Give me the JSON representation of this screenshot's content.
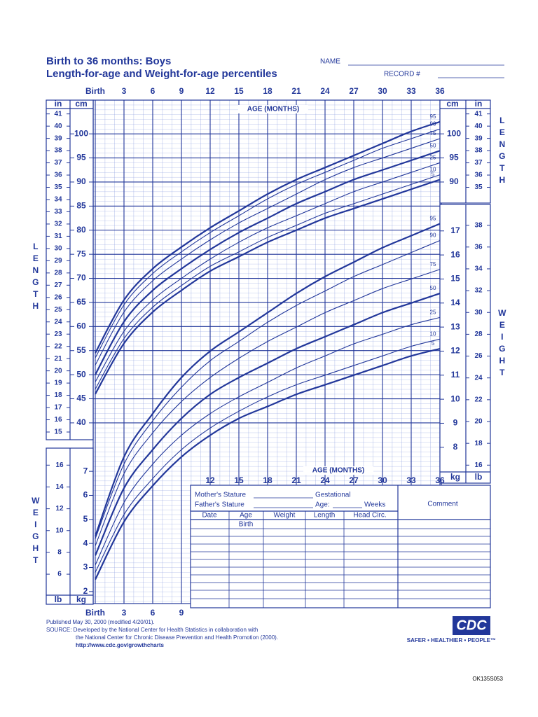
{
  "header": {
    "title": "Birth to 36 months: Boys",
    "subtitle": "Length-for-age and Weight-for-age percentiles",
    "name_label": "NAME",
    "record_label": "RECORD #"
  },
  "chart_data": [
    {
      "type": "line",
      "title": "Length-for-age",
      "x_label": "AGE (MONTHS)",
      "y_label": "LENGTH",
      "cm_label": "cm",
      "in_label": "in",
      "x": [
        0,
        3,
        6,
        9,
        12,
        15,
        18,
        21,
        24,
        27,
        30,
        33,
        36
      ],
      "xlim": [
        0,
        36
      ],
      "xticks": [
        {
          "value": 0,
          "label": "Birth"
        },
        3,
        6,
        9,
        12,
        15,
        18,
        21,
        24,
        27,
        30,
        33,
        36
      ],
      "ylim": [
        36.5,
        107
      ],
      "yticks": [
        40,
        45,
        50,
        55,
        60,
        65,
        70,
        75,
        80,
        85,
        90,
        95,
        100
      ],
      "yticks_right": [
        90,
        95,
        100
      ],
      "in_ticks": [
        15,
        16,
        17,
        18,
        19,
        20,
        21,
        22,
        23,
        24,
        25,
        26,
        27,
        28,
        29,
        30,
        31,
        32,
        33,
        34,
        35,
        36,
        37,
        38,
        39,
        40,
        41
      ],
      "in_ticks_right": [
        35,
        36,
        37,
        38,
        39,
        40,
        41
      ],
      "grid": true,
      "series": [
        {
          "name": "5",
          "color": "#22379a",
          "values": [
            46,
            56.5,
            63,
            67.5,
            71.5,
            74.5,
            77.5,
            80,
            82.5,
            84.5,
            86.5,
            88.5,
            90.5
          ]
        },
        {
          "name": "10",
          "color": "#22379a",
          "values": [
            47,
            57.5,
            64,
            68.5,
            72.5,
            75.5,
            78.5,
            81,
            83.5,
            85.5,
            87.5,
            89.5,
            91.5
          ]
        },
        {
          "name": "25",
          "color": "#22379a",
          "values": [
            48.5,
            59,
            65.5,
            70,
            74,
            77.5,
            80.5,
            83,
            85.5,
            88,
            90,
            92,
            94
          ]
        },
        {
          "name": "50",
          "color": "#22379a",
          "values": [
            50,
            61,
            67.5,
            72,
            76,
            79.5,
            82.5,
            85.5,
            88,
            90.5,
            92.5,
            94.5,
            96.5
          ]
        },
        {
          "name": "75",
          "color": "#22379a",
          "values": [
            52,
            63,
            69.5,
            74,
            78,
            81.5,
            84.5,
            87.5,
            90.5,
            93,
            95,
            97,
            99
          ]
        },
        {
          "name": "90",
          "color": "#22379a",
          "values": [
            53.5,
            64.5,
            71,
            75.5,
            79.5,
            83,
            86.5,
            89.5,
            92,
            94.5,
            97,
            99,
            101
          ]
        },
        {
          "name": "95",
          "color": "#22379a",
          "values": [
            54.5,
            65.5,
            72,
            76.5,
            80.5,
            84,
            87.5,
            90.5,
            93,
            95.5,
            98,
            100.5,
            102.5
          ]
        }
      ]
    },
    {
      "type": "line",
      "title": "Weight-for-age",
      "x_label": "AGE (MONTHS)",
      "y_label": "WEIGHT",
      "kg_label": "kg",
      "lb_label": "lb",
      "x": [
        0,
        3,
        6,
        9,
        12,
        15,
        18,
        21,
        24,
        27,
        30,
        33,
        36
      ],
      "xlim": [
        0,
        36
      ],
      "xticks_mid": [
        12,
        15,
        18,
        21,
        24,
        27,
        30,
        33,
        36
      ],
      "xticks_bottom": [
        {
          "value": 0,
          "label": "Birth"
        },
        3,
        6,
        9
      ],
      "ylim": [
        1.5,
        18.1
      ],
      "yticks": [
        2,
        3,
        4,
        5,
        6,
        7
      ],
      "yticks_right": [
        8,
        9,
        10,
        11,
        12,
        13,
        14,
        15,
        16,
        17
      ],
      "lb_ticks": [
        6,
        8,
        10,
        12,
        14,
        16
      ],
      "lb_ticks_right": [
        16,
        18,
        20,
        22,
        24,
        26,
        28,
        30,
        32,
        34,
        36,
        38
      ],
      "series": [
        {
          "name": "5",
          "color": "#22379a",
          "values": [
            2.5,
            4.9,
            6.4,
            7.6,
            8.5,
            9.2,
            9.7,
            10.2,
            10.6,
            11.0,
            11.4,
            11.8,
            12.1
          ]
        },
        {
          "name": "10",
          "color": "#22379a",
          "values": [
            2.8,
            5.2,
            6.7,
            7.9,
            8.8,
            9.5,
            10.1,
            10.6,
            11.0,
            11.4,
            11.8,
            12.2,
            12.5
          ]
        },
        {
          "name": "25",
          "color": "#22379a",
          "values": [
            3.1,
            5.7,
            7.3,
            8.5,
            9.4,
            10.1,
            10.7,
            11.3,
            11.8,
            12.3,
            12.7,
            13.1,
            13.4
          ]
        },
        {
          "name": "50",
          "color": "#22379a",
          "values": [
            3.5,
            6.3,
            7.9,
            9.2,
            10.2,
            10.9,
            11.5,
            12.1,
            12.6,
            13.1,
            13.6,
            14.0,
            14.4
          ]
        },
        {
          "name": "75",
          "color": "#22379a",
          "values": [
            3.9,
            6.9,
            8.6,
            9.9,
            10.9,
            11.7,
            12.4,
            13.0,
            13.6,
            14.1,
            14.6,
            15.0,
            15.4
          ]
        },
        {
          "name": "90",
          "color": "#22379a",
          "values": [
            4.2,
            7.3,
            9.1,
            10.5,
            11.6,
            12.4,
            13.2,
            13.9,
            14.5,
            15.1,
            15.6,
            16.1,
            16.6
          ]
        },
        {
          "name": "95",
          "color": "#22379a",
          "values": [
            4.3,
            7.6,
            9.4,
            10.9,
            12.0,
            12.8,
            13.6,
            14.4,
            15.1,
            15.7,
            16.3,
            16.8,
            17.3
          ]
        }
      ]
    }
  ],
  "form": {
    "mother_stature": "Mother's Stature",
    "father_stature": "Father's Stature",
    "gestational": "Gestational",
    "age": "Age:",
    "weeks": "Weeks",
    "comment": "Comment",
    "table_headers": [
      "Date",
      "Age",
      "Weight",
      "Length",
      "Head Circ."
    ],
    "first_row_age": "Birth"
  },
  "footer": {
    "published": "Published May 30, 2000 (modified 4/20/01).",
    "source": [
      "SOURCE: Developed by the National Center for Health Statistics in collaboration with",
      "the National Center for Chronic Disease Prevention and Health Promotion (2000)."
    ],
    "url": "http://www.cdc.gov/growthcharts",
    "logo": "CDC",
    "tagline": "SAFER • HEALTHIER • PEOPLE™",
    "code": "OK135S053"
  }
}
